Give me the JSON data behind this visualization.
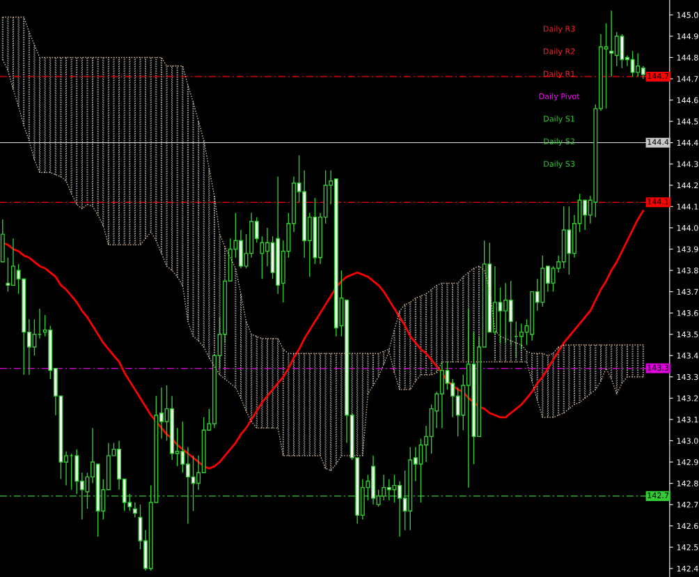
{
  "chart_data": {
    "type": "candlestick",
    "categories": [
      null,
      null,
      null,
      null,
      null,
      null,
      null,
      null,
      null,
      null,
      null,
      null,
      null,
      null,
      null,
      null,
      null,
      null,
      null,
      null,
      null,
      null,
      null,
      null,
      null,
      null,
      null,
      null,
      null,
      null,
      null,
      null,
      null,
      null,
      null,
      null,
      null,
      null,
      null,
      null,
      null,
      null,
      null,
      null,
      null,
      null,
      null,
      null,
      null,
      null,
      null,
      null,
      null,
      null,
      null,
      null,
      null,
      null,
      null,
      null,
      null,
      null,
      null,
      null,
      null,
      null,
      null,
      null,
      null,
      null,
      null,
      null,
      null,
      null,
      null,
      null,
      null,
      null,
      null,
      null,
      null,
      null,
      null,
      null,
      null,
      null,
      null,
      null,
      null,
      null,
      null,
      null,
      null,
      null,
      null,
      null,
      null,
      null,
      null,
      null,
      null,
      null,
      null,
      null,
      null,
      null,
      null,
      null,
      null,
      null,
      null,
      null,
      null,
      null,
      null,
      null,
      null,
      null,
      null,
      null,
      null,
      null
    ],
    "color": "#33cc33",
    "ohlc": [
      [
        143.84,
        144.04,
        143.84,
        143.97
      ],
      [
        143.74,
        143.86,
        143.7,
        143.73
      ],
      [
        143.73,
        143.95,
        143.73,
        143.82
      ],
      [
        143.8,
        143.83,
        143.69,
        143.76
      ],
      [
        143.76,
        143.76,
        143.31,
        143.51
      ],
      [
        143.51,
        143.57,
        143.31,
        143.44
      ],
      [
        143.44,
        143.57,
        143.4,
        143.5
      ],
      [
        143.5,
        143.62,
        143.48,
        143.5
      ],
      [
        143.51,
        143.59,
        143.49,
        143.52
      ],
      [
        143.52,
        143.54,
        143.29,
        143.33
      ],
      [
        143.34,
        143.34,
        143.12,
        143.21
      ],
      [
        143.21,
        143.21,
        142.82,
        142.9
      ],
      [
        142.9,
        142.95,
        142.79,
        142.93
      ],
      [
        142.93,
        142.94,
        142.77,
        142.93
      ],
      [
        142.93,
        142.96,
        142.75,
        142.81
      ],
      [
        142.81,
        142.85,
        142.63,
        142.77
      ],
      [
        142.76,
        142.85,
        142.68,
        142.83
      ],
      [
        142.83,
        143.06,
        142.8,
        142.9
      ],
      [
        142.89,
        142.89,
        142.55,
        142.67
      ],
      [
        142.67,
        142.82,
        142.63,
        142.77
      ],
      [
        142.77,
        142.99,
        142.77,
        142.93
      ],
      [
        142.93,
        142.99,
        142.93,
        142.96
      ],
      [
        142.96,
        143.0,
        142.77,
        142.82
      ],
      [
        142.82,
        142.82,
        142.67,
        142.71
      ],
      [
        142.71,
        142.75,
        142.67,
        142.69
      ],
      [
        142.68,
        142.71,
        142.64,
        142.66
      ],
      [
        142.64,
        142.7,
        142.49,
        142.53
      ],
      [
        142.53,
        142.58,
        142.39,
        142.4
      ],
      [
        142.4,
        142.79,
        142.39,
        142.71
      ],
      [
        142.71,
        143.21,
        142.71,
        143.12
      ],
      [
        143.13,
        143.25,
        143.01,
        143.09
      ],
      [
        143.09,
        143.26,
        143.0,
        143.15
      ],
      [
        143.15,
        143.21,
        142.91,
        142.94
      ],
      [
        142.94,
        143.06,
        142.88,
        142.95
      ],
      [
        142.95,
        143.09,
        142.85,
        142.89
      ],
      [
        142.89,
        142.97,
        142.61,
        142.83
      ],
      [
        142.83,
        142.93,
        142.67,
        142.8
      ],
      [
        142.8,
        142.93,
        142.77,
        142.85
      ],
      [
        142.85,
        143.11,
        142.85,
        143.05
      ],
      [
        143.05,
        143.15,
        143.05,
        143.08
      ],
      [
        143.08,
        143.4,
        143.06,
        143.4
      ],
      [
        143.4,
        143.58,
        143.34,
        143.5
      ],
      [
        143.5,
        143.75,
        143.46,
        143.75
      ],
      [
        143.75,
        143.95,
        143.75,
        143.9
      ],
      [
        143.9,
        144.07,
        143.86,
        143.94
      ],
      [
        143.94,
        143.99,
        143.81,
        143.82
      ],
      [
        143.82,
        143.97,
        143.81,
        143.88
      ],
      [
        143.88,
        144.07,
        143.86,
        144.03
      ],
      [
        144.03,
        144.05,
        143.93,
        143.95
      ],
      [
        143.88,
        143.96,
        143.76,
        143.93
      ],
      [
        143.89,
        144.0,
        143.82,
        143.93
      ],
      [
        143.93,
        143.96,
        143.76,
        143.79
      ],
      [
        143.95,
        144.24,
        143.69,
        143.73
      ],
      [
        143.74,
        143.94,
        143.65,
        143.89
      ],
      [
        143.89,
        144.07,
        143.86,
        144.02
      ],
      [
        144.02,
        144.24,
        143.98,
        144.21
      ],
      [
        144.21,
        144.34,
        144.12,
        144.17
      ],
      [
        144.17,
        144.27,
        143.86,
        143.94
      ],
      [
        143.94,
        144.07,
        143.77,
        144.05
      ],
      [
        144.05,
        144.14,
        143.83,
        143.86
      ],
      [
        143.86,
        144.07,
        143.83,
        144.05
      ],
      [
        144.05,
        144.27,
        144.02,
        144.2
      ],
      [
        144.2,
        144.27,
        144.11,
        144.22
      ],
      [
        144.23,
        144.23,
        143.49,
        143.53
      ],
      [
        143.54,
        143.8,
        143.49,
        143.67
      ],
      [
        143.66,
        143.66,
        142.99,
        143.12
      ],
      [
        143.12,
        143.13,
        142.91,
        142.92
      ],
      [
        142.92,
        142.92,
        142.61,
        142.65
      ],
      [
        142.65,
        142.82,
        142.63,
        142.78
      ],
      [
        142.78,
        142.84,
        142.72,
        142.81
      ],
      [
        142.88,
        142.93,
        142.7,
        142.73
      ],
      [
        142.7,
        142.77,
        142.69,
        142.74
      ],
      [
        142.74,
        142.84,
        142.72,
        142.78
      ],
      [
        142.78,
        142.82,
        142.72,
        142.77
      ],
      [
        142.77,
        142.84,
        142.71,
        142.79
      ],
      [
        142.79,
        142.81,
        142.55,
        142.73
      ],
      [
        142.73,
        142.86,
        142.58,
        142.67
      ],
      [
        142.67,
        142.97,
        142.58,
        142.91
      ],
      [
        142.92,
        142.97,
        142.81,
        142.89
      ],
      [
        142.89,
        143.01,
        142.71,
        142.98
      ],
      [
        142.98,
        143.07,
        142.9,
        143.02
      ],
      [
        143.02,
        143.17,
        142.94,
        143.15
      ],
      [
        143.14,
        143.23,
        143.06,
        143.22
      ],
      [
        143.22,
        143.37,
        143.06,
        143.33
      ],
      [
        143.33,
        143.37,
        143.24,
        143.27
      ],
      [
        143.27,
        143.29,
        143.11,
        143.21
      ],
      [
        143.21,
        143.25,
        143.02,
        143.12
      ],
      [
        143.12,
        143.31,
        143.05,
        143.26
      ],
      [
        143.26,
        143.62,
        142.78,
        143.36
      ],
      [
        143.36,
        143.51,
        142.89,
        143.02
      ],
      [
        143.02,
        143.49,
        143.02,
        143.44
      ],
      [
        143.44,
        143.94,
        143.44,
        143.83
      ],
      [
        143.83,
        143.93,
        143.51,
        143.51
      ],
      [
        143.51,
        143.82,
        143.5,
        143.65
      ],
      [
        143.65,
        143.72,
        143.46,
        143.61
      ],
      [
        143.61,
        143.74,
        143.46,
        143.66
      ],
      [
        143.66,
        143.75,
        143.45,
        143.56
      ],
      [
        143.49,
        143.56,
        143.39,
        143.49
      ],
      [
        143.49,
        143.55,
        143.43,
        143.51
      ],
      [
        143.51,
        143.57,
        143.45,
        143.54
      ],
      [
        143.5,
        143.7,
        143.47,
        143.7
      ],
      [
        143.7,
        143.76,
        143.61,
        143.65
      ],
      [
        143.65,
        143.87,
        143.63,
        143.81
      ],
      [
        143.82,
        143.82,
        143.7,
        143.74
      ],
      [
        143.74,
        143.82,
        143.7,
        143.81
      ],
      [
        143.81,
        143.87,
        143.79,
        143.84
      ],
      [
        143.84,
        144.1,
        143.81,
        143.99
      ],
      [
        143.99,
        144.1,
        143.78,
        143.88
      ],
      [
        143.88,
        144.06,
        143.86,
        144.02
      ],
      [
        144.02,
        144.16,
        143.98,
        144.13
      ],
      [
        144.13,
        144.13,
        143.99,
        144.06
      ],
      [
        144.06,
        144.15,
        144.02,
        144.13
      ],
      [
        144.12,
        144.58,
        144.05,
        144.56
      ],
      [
        144.56,
        144.91,
        144.55,
        144.85
      ],
      [
        144.84,
        144.96,
        144.56,
        144.85
      ],
      [
        144.83,
        145.02,
        144.71,
        144.82
      ],
      [
        144.81,
        144.92,
        144.76,
        144.9
      ],
      [
        144.9,
        144.91,
        144.75,
        144.79
      ],
      [
        144.8,
        144.81,
        144.76,
        144.79
      ],
      [
        144.79,
        144.83,
        144.71,
        144.73
      ],
      [
        144.73,
        144.82,
        144.71,
        144.76
      ],
      [
        144.75,
        144.76,
        144.7,
        144.72
      ]
    ],
    "series": [
      {
        "type": "line",
        "color": "#ff0000",
        "line_style": "solid",
        "values": [
          143.93,
          143.92,
          143.9,
          143.89,
          143.87,
          143.86,
          143.84,
          143.82,
          143.81,
          143.79,
          143.77,
          143.73,
          143.71,
          143.68,
          143.65,
          143.61,
          143.58,
          143.54,
          143.5,
          143.46,
          143.43,
          143.4,
          143.37,
          143.32,
          143.28,
          143.24,
          143.2,
          143.16,
          143.12,
          143.09,
          143.06,
          143.03,
          143.01,
          142.98,
          142.96,
          142.94,
          142.92,
          142.9,
          142.88,
          142.87,
          142.88,
          142.9,
          142.93,
          142.96,
          142.99,
          143.03,
          143.06,
          143.1,
          143.14,
          143.18,
          143.21,
          143.24,
          143.27,
          143.3,
          143.34,
          143.39,
          143.43,
          143.48,
          143.52,
          143.56,
          143.6,
          143.64,
          143.68,
          143.72,
          143.75,
          143.77,
          143.78,
          143.79,
          143.78,
          143.77,
          143.75,
          143.73,
          143.7,
          143.66,
          143.62,
          143.58,
          143.54,
          143.49,
          143.46,
          143.43,
          143.41,
          143.38,
          143.35,
          143.32,
          143.28,
          143.26,
          143.24,
          143.23,
          143.2,
          143.18,
          143.16,
          143.15,
          143.13,
          143.12,
          143.11,
          143.11,
          143.13,
          143.15,
          143.17,
          143.2,
          143.23,
          143.27,
          143.3,
          143.34,
          143.38,
          143.42,
          143.46,
          143.49,
          143.52,
          143.55,
          143.58,
          143.61,
          143.66,
          143.71,
          143.75,
          143.8,
          143.84,
          143.89,
          143.94,
          143.99,
          144.04,
          144.08
        ]
      },
      {
        "type": "line",
        "color": "#e8c4a0",
        "line_style": "dotted",
        "values": [
          144.99,
          144.99,
          144.99,
          144.99,
          144.99,
          144.92,
          144.86,
          144.8,
          144.8,
          144.8,
          144.8,
          144.8,
          144.8,
          144.8,
          144.8,
          144.8,
          144.8,
          144.8,
          144.8,
          144.8,
          144.8,
          144.8,
          144.8,
          144.8,
          144.8,
          144.8,
          144.8,
          144.8,
          144.8,
          144.8,
          144.8,
          144.76,
          144.76,
          144.76,
          144.76,
          144.67,
          144.59,
          144.5,
          144.41,
          144.28,
          144.15,
          143.97,
          143.91,
          143.86,
          143.81,
          143.69,
          143.56,
          143.5,
          143.49,
          143.48,
          143.48,
          143.48,
          143.48,
          143.43,
          143.41,
          143.41,
          143.41,
          143.41,
          143.41,
          143.41,
          143.41,
          143.41,
          143.41,
          143.41,
          143.41,
          143.41,
          143.41,
          143.41,
          143.41,
          143.41,
          143.41,
          143.41,
          143.42,
          143.43,
          143.52,
          143.61,
          143.64,
          143.65,
          143.67,
          143.68,
          143.69,
          143.71,
          143.73,
          143.74,
          143.74,
          143.74,
          143.74,
          143.77,
          143.79,
          143.81,
          143.82,
          143.8,
          143.71,
          143.52,
          143.49,
          143.48,
          143.47,
          143.46,
          143.45,
          143.42,
          143.41,
          143.41,
          143.41,
          143.4,
          143.41,
          143.44,
          143.45,
          143.45,
          143.45,
          143.45,
          143.45,
          143.45,
          143.45,
          143.45,
          143.45,
          143.45,
          143.45,
          143.45,
          143.45,
          143.45,
          143.45,
          143.45
        ]
      },
      {
        "type": "line",
        "color": "#e8c4a0",
        "line_style": "dotted",
        "values": [
          144.79,
          144.74,
          144.65,
          144.57,
          144.48,
          144.41,
          144.32,
          144.26,
          144.26,
          144.26,
          144.25,
          144.24,
          144.22,
          144.16,
          144.11,
          144.09,
          144.11,
          144.1,
          144.06,
          144.01,
          143.92,
          143.92,
          143.92,
          143.92,
          143.92,
          143.92,
          143.92,
          143.95,
          143.98,
          143.94,
          143.88,
          143.82,
          143.8,
          143.77,
          143.73,
          143.56,
          143.49,
          143.47,
          143.44,
          143.39,
          143.35,
          143.31,
          143.29,
          143.27,
          143.25,
          143.2,
          143.14,
          143.09,
          143.06,
          143.06,
          143.06,
          143.06,
          143.06,
          142.93,
          142.93,
          142.93,
          142.93,
          142.93,
          142.93,
          142.93,
          142.93,
          142.87,
          142.86,
          142.89,
          142.93,
          142.93,
          142.93,
          142.93,
          142.93,
          143.22,
          143.26,
          143.3,
          143.36,
          143.42,
          143.32,
          143.24,
          143.24,
          143.24,
          143.28,
          143.31,
          143.31,
          143.31,
          143.32,
          143.37,
          143.37,
          143.37,
          143.37,
          143.37,
          143.37,
          143.37,
          143.37,
          143.37,
          143.37,
          143.37,
          143.37,
          143.37,
          143.37,
          143.37,
          143.37,
          143.37,
          143.28,
          143.19,
          143.11,
          143.11,
          143.11,
          143.12,
          143.13,
          143.15,
          143.17,
          143.18,
          143.2,
          143.22,
          143.24,
          143.28,
          143.34,
          143.29,
          143.22,
          143.27,
          143.3,
          143.3,
          143.3,
          143.3
        ]
      },
      {
        "type": "bar",
        "color": "#d8d8d8",
        "base": [
          144.79,
          144.74,
          144.65,
          144.57,
          144.48,
          144.41,
          144.32,
          144.26,
          144.26,
          144.26,
          144.25,
          144.24,
          144.22,
          144.16,
          144.11,
          144.09,
          144.11,
          144.1,
          144.06,
          144.01,
          143.92,
          143.92,
          143.92,
          143.92,
          143.92,
          143.92,
          143.92,
          143.95,
          143.98,
          143.94,
          143.88,
          143.82,
          143.8,
          143.77,
          143.73,
          143.56,
          143.49,
          143.47,
          143.44,
          143.39,
          143.35,
          143.31,
          143.29,
          null,
          143.25,
          143.2,
          143.14,
          143.09,
          143.06,
          143.06,
          143.06,
          143.06,
          143.06,
          142.93,
          142.93,
          142.93,
          142.93,
          142.93,
          142.93,
          142.93,
          142.93,
          142.87,
          142.86,
          142.89,
          142.93,
          null,
          142.93,
          142.93,
          142.93,
          143.22,
          143.26,
          143.3,
          143.36,
          143.42,
          143.32,
          143.24,
          143.24,
          143.24,
          143.28,
          143.31,
          143.31,
          143.31,
          143.32,
          143.37,
          143.37,
          143.37,
          143.37,
          143.37,
          143.37,
          143.37,
          143.37,
          null,
          null,
          143.37,
          143.37,
          143.37,
          143.37,
          143.37,
          143.37,
          143.37,
          143.28,
          143.19,
          143.11,
          143.11,
          143.11,
          143.12,
          143.13,
          143.15,
          143.17,
          143.18,
          143.2,
          143.22,
          143.24,
          143.28,
          143.34,
          143.29,
          143.22,
          143.27,
          143.3,
          143.3,
          143.3,
          143.3
        ],
        "values": [
          0.2,
          0.25,
          0.34,
          0.42,
          0.51,
          0.51,
          0.54,
          0.54,
          0.54,
          0.54,
          0.55,
          0.56,
          0.58,
          0.64,
          0.69,
          0.71,
          0.69,
          0.7,
          0.74,
          0.79,
          0.88,
          0.88,
          0.88,
          0.88,
          0.88,
          0.88,
          0.88,
          0.85,
          0.82,
          0.86,
          0.92,
          0.94,
          0.96,
          0.99,
          1.03,
          1.11,
          1.1,
          1.03,
          0.97,
          0.89,
          0.8,
          0.66,
          0.62,
          null,
          0.56,
          0.49,
          0.42,
          0.41,
          0.43,
          0.42,
          0.42,
          0.42,
          0.42,
          0.5,
          0.48,
          0.48,
          0.48,
          0.48,
          0.48,
          0.48,
          0.48,
          0.54,
          0.55,
          0.52,
          0.48,
          null,
          0.48,
          0.48,
          0.48,
          0.19,
          0.15,
          0.11,
          0.06,
          0.01,
          0.2,
          0.37,
          0.4,
          0.41,
          0.39,
          0.37,
          0.38,
          0.4,
          0.41,
          0.37,
          0.37,
          0.37,
          0.37,
          0.4,
          0.42,
          0.44,
          0.45,
          null,
          null,
          0.15,
          0.12,
          0.11,
          0.1,
          0.09,
          0.08,
          0.05,
          0.13,
          0.22,
          0.3,
          0.29,
          0.3,
          0.32,
          0.32,
          0.3,
          0.28,
          0.27,
          0.25,
          0.23,
          0.21,
          0.17,
          0.11,
          0.16,
          0.23,
          0.18,
          0.15,
          0.15,
          0.15,
          0.15
        ]
      }
    ],
    "ylim": [
      142.36,
      145.07
    ],
    "yticks": [
      142.4,
      142.5,
      142.6,
      142.7,
      142.8,
      142.9,
      {
        "value": 143.0,
        "label": "143.0"
      },
      143.1,
      143.2,
      143.3,
      143.4,
      143.5,
      143.6,
      143.7,
      143.8,
      143.9,
      {
        "value": 144.0,
        "label": "144.0"
      },
      144.1,
      144.2,
      144.3,
      144.4,
      144.5,
      144.6,
      144.7,
      144.8,
      144.9,
      {
        "value": 145.0,
        "label": "145.0"
      }
    ],
    "tick_labels": "y",
    "ref_lines": [
      {
        "axis": "y",
        "value": 144.71,
        "label": "144.7",
        "color": "#ff0000",
        "line_style": "dashed"
      },
      {
        "axis": "y",
        "value": 144.4,
        "label": "144.4",
        "color": "#c8c8c8",
        "line_style": "solid"
      },
      {
        "axis": "y",
        "value": 144.12,
        "label": "144.1",
        "color": "#ff0000",
        "line_style": "dashed"
      },
      {
        "axis": "y",
        "value": 143.34,
        "label": "143.3",
        "color": "#dd00dd",
        "line_style": "dashed"
      },
      {
        "axis": "y",
        "value": 142.74,
        "label": "142.7",
        "color": "#33cc33",
        "line_style": "dashed"
      }
    ],
    "annotations": [
      "Daily R3",
      "Daily R2",
      "Daily R1",
      "Daily Pivot",
      "Daily S1",
      "Daily S2",
      "Daily S3"
    ]
  }
}
